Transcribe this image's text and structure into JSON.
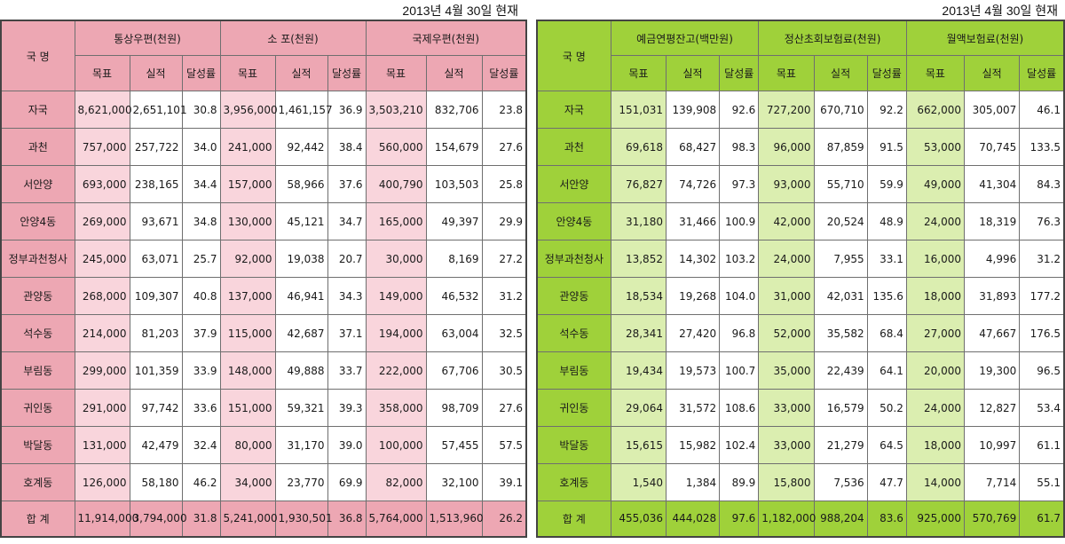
{
  "date_label": "2013년 4월 30일 현재",
  "row_names": [
    "자국",
    "과천",
    "서안양",
    "안양4동",
    "정부과천청사",
    "관양동",
    "석수동",
    "부림동",
    "귀인동",
    "박달동",
    "호계동",
    "합 계"
  ],
  "left": {
    "nation_header": "국 명",
    "groups": [
      "통상우편(천원)",
      "소 포(천원)",
      "국제우편(천원)"
    ],
    "sub": [
      "목표",
      "실적",
      "달성률"
    ],
    "rows": [
      [
        "8,621,000",
        "2,651,101",
        "30.8",
        "3,956,000",
        "1,461,157",
        "36.9",
        "3,503,210",
        "832,706",
        "23.8"
      ],
      [
        "757,000",
        "257,722",
        "34.0",
        "241,000",
        "92,442",
        "38.4",
        "560,000",
        "154,679",
        "27.6"
      ],
      [
        "693,000",
        "238,165",
        "34.4",
        "157,000",
        "58,966",
        "37.6",
        "400,790",
        "103,503",
        "25.8"
      ],
      [
        "269,000",
        "93,671",
        "34.8",
        "130,000",
        "45,121",
        "34.7",
        "165,000",
        "49,397",
        "29.9"
      ],
      [
        "245,000",
        "63,071",
        "25.7",
        "92,000",
        "19,038",
        "20.7",
        "30,000",
        "8,169",
        "27.2"
      ],
      [
        "268,000",
        "109,307",
        "40.8",
        "137,000",
        "46,941",
        "34.3",
        "149,000",
        "46,532",
        "31.2"
      ],
      [
        "214,000",
        "81,203",
        "37.9",
        "115,000",
        "42,687",
        "37.1",
        "194,000",
        "63,004",
        "32.5"
      ],
      [
        "299,000",
        "101,359",
        "33.9",
        "148,000",
        "49,888",
        "33.7",
        "222,000",
        "67,706",
        "30.5"
      ],
      [
        "291,000",
        "97,742",
        "33.6",
        "151,000",
        "59,321",
        "39.3",
        "358,000",
        "98,709",
        "27.6"
      ],
      [
        "131,000",
        "42,479",
        "32.4",
        "80,000",
        "31,170",
        "39.0",
        "100,000",
        "57,455",
        "57.5"
      ],
      [
        "126,000",
        "58,180",
        "46.2",
        "34,000",
        "23,770",
        "69.9",
        "82,000",
        "32,100",
        "39.1"
      ],
      [
        "11,914,000",
        "3,794,000",
        "31.8",
        "5,241,000",
        "1,930,501",
        "36.8",
        "5,764,000",
        "1,513,960",
        "26.2"
      ]
    ]
  },
  "right": {
    "nation_header": "국 명",
    "groups": [
      "예금연평잔고(백만원)",
      "정산초회보험료(천원)",
      "월액보험료(천원)"
    ],
    "sub": [
      "목표",
      "실적",
      "달성률"
    ],
    "rows": [
      [
        "151,031",
        "139,908",
        "92.6",
        "727,200",
        "670,710",
        "92.2",
        "662,000",
        "305,007",
        "46.1"
      ],
      [
        "69,618",
        "68,427",
        "98.3",
        "96,000",
        "87,859",
        "91.5",
        "53,000",
        "70,745",
        "133.5"
      ],
      [
        "76,827",
        "74,726",
        "97.3",
        "93,000",
        "55,710",
        "59.9",
        "49,000",
        "41,304",
        "84.3"
      ],
      [
        "31,180",
        "31,466",
        "100.9",
        "42,000",
        "20,524",
        "48.9",
        "24,000",
        "18,319",
        "76.3"
      ],
      [
        "13,852",
        "14,302",
        "103.2",
        "24,000",
        "7,955",
        "33.1",
        "16,000",
        "4,996",
        "31.2"
      ],
      [
        "18,534",
        "19,268",
        "104.0",
        "31,000",
        "42,031",
        "135.6",
        "18,000",
        "31,893",
        "177.2"
      ],
      [
        "28,341",
        "27,420",
        "96.8",
        "52,000",
        "35,582",
        "68.4",
        "27,000",
        "47,667",
        "176.5"
      ],
      [
        "19,434",
        "19,573",
        "100.7",
        "35,000",
        "22,439",
        "64.1",
        "20,000",
        "19,300",
        "96.5"
      ],
      [
        "29,064",
        "31,572",
        "108.6",
        "33,000",
        "16,579",
        "50.2",
        "24,000",
        "12,827",
        "53.4"
      ],
      [
        "15,615",
        "15,982",
        "102.4",
        "33,000",
        "21,279",
        "64.5",
        "18,000",
        "10,997",
        "61.1"
      ],
      [
        "1,540",
        "1,384",
        "89.9",
        "15,800",
        "7,536",
        "47.7",
        "14,000",
        "7,714",
        "55.1"
      ],
      [
        "455,036",
        "444,028",
        "97.6",
        "1,182,000",
        "988,204",
        "83.6",
        "925,000",
        "570,769",
        "61.7"
      ]
    ]
  }
}
